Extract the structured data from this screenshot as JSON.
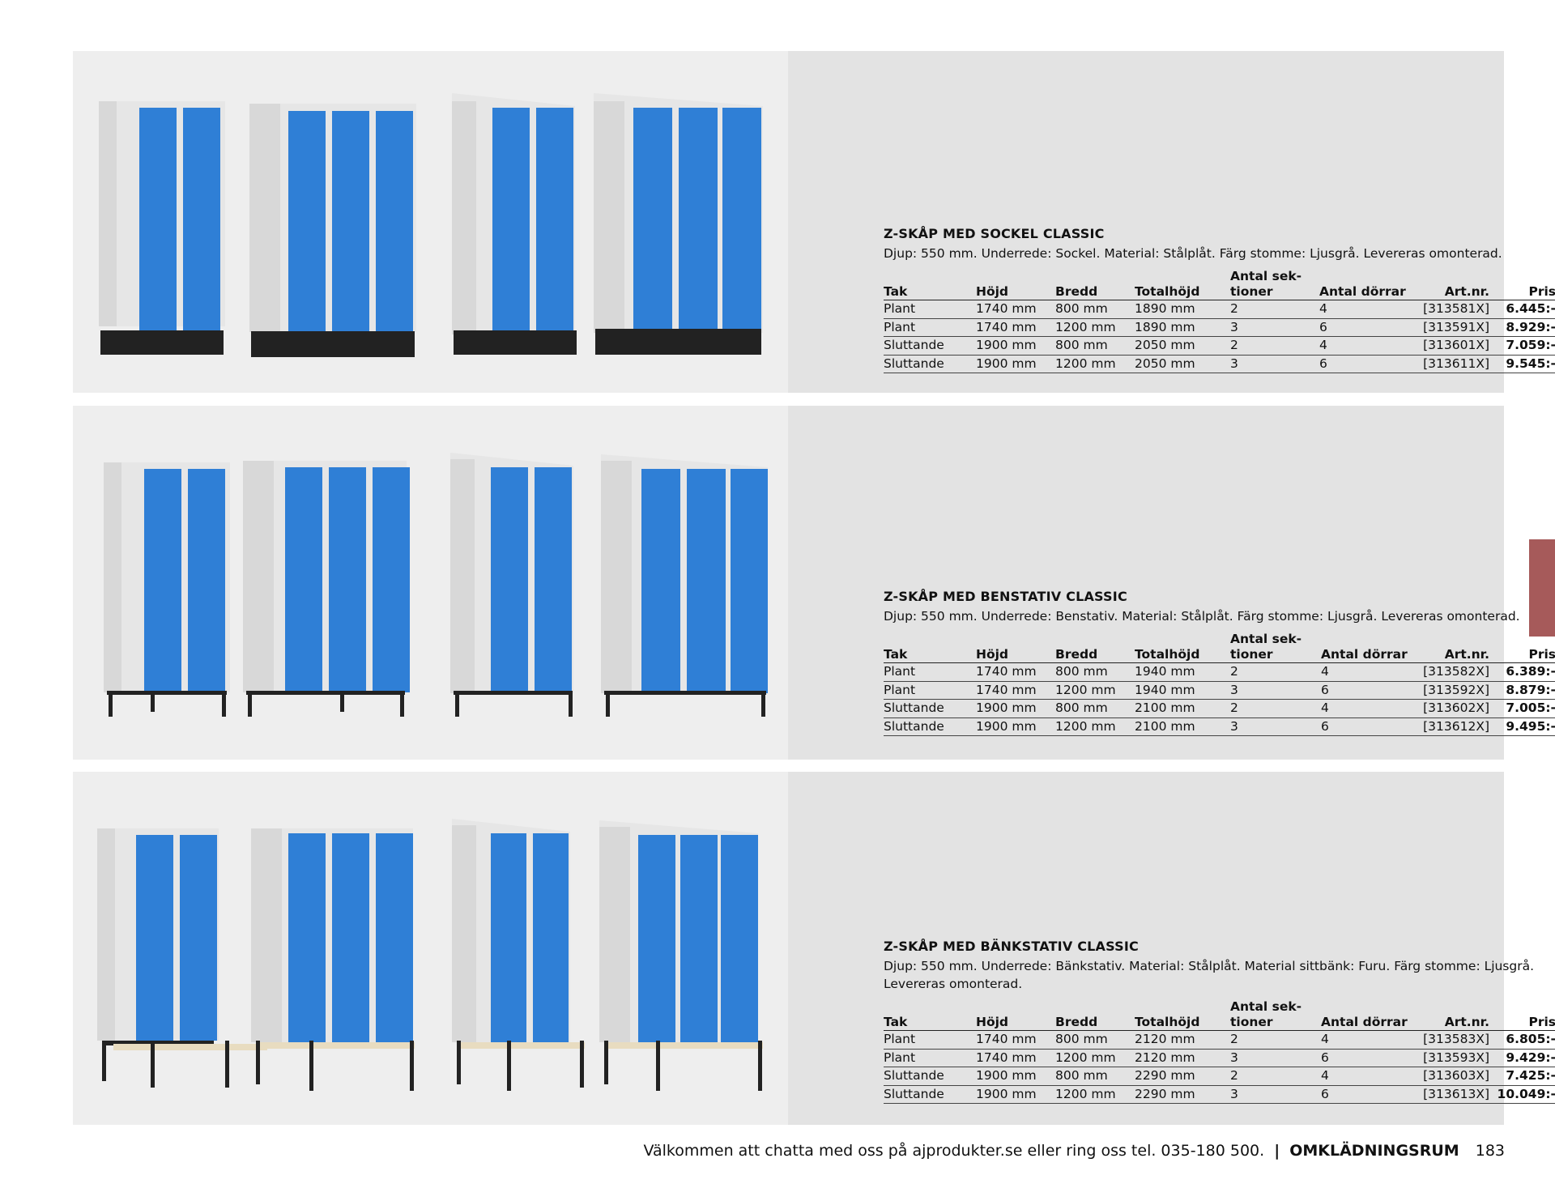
{
  "columns": [
    "Tak",
    "Höjd",
    "Bredd",
    "Totalhöjd",
    "Antal sek-\ntioner",
    "Antal dörrar",
    "Art.nr.",
    "Pris"
  ],
  "products": [
    {
      "title": "Z-SKÅP MED SOCKEL CLASSIC",
      "description": "Djup: 550 mm. Underrede: Sockel. Material: Stålplåt. Färg stomme: Ljusgrå. Levereras omonterad.",
      "rows": [
        [
          "Plant",
          "1740 mm",
          "800 mm",
          "1890 mm",
          "2",
          "4",
          "[313581X]",
          "6.445:-"
        ],
        [
          "Plant",
          "1740 mm",
          "1200 mm",
          "1890 mm",
          "3",
          "6",
          "[313591X]",
          "8.929:-"
        ],
        [
          "Sluttande",
          "1900 mm",
          "800 mm",
          "2050 mm",
          "2",
          "4",
          "[313601X]",
          "7.059:-"
        ],
        [
          "Sluttande",
          "1900 mm",
          "1200 mm",
          "2050 mm",
          "3",
          "6",
          "[313611X]",
          "9.545:-"
        ]
      ]
    },
    {
      "title": "Z-SKÅP MED BENSTATIV CLASSIC",
      "description": "Djup: 550 mm. Underrede: Benstativ. Material: Stålplåt. Färg stomme: Ljusgrå. Levereras omonterad.",
      "rows": [
        [
          "Plant",
          "1740 mm",
          "800 mm",
          "1940 mm",
          "2",
          "4",
          "[313582X]",
          "6.389:-"
        ],
        [
          "Plant",
          "1740 mm",
          "1200 mm",
          "1940 mm",
          "3",
          "6",
          "[313592X]",
          "8.879:-"
        ],
        [
          "Sluttande",
          "1900 mm",
          "800 mm",
          "2100 mm",
          "2",
          "4",
          "[313602X]",
          "7.005:-"
        ],
        [
          "Sluttande",
          "1900 mm",
          "1200 mm",
          "2100 mm",
          "3",
          "6",
          "[313612X]",
          "9.495:-"
        ]
      ]
    },
    {
      "title": "Z-SKÅP MED BÄNKSTATIV CLASSIC",
      "description": "Djup: 550 mm. Underrede: Bänkstativ. Material: Stålplåt. Material sittbänk: Furu. Färg stomme: Ljusgrå. Levereras omonterad.",
      "rows": [
        [
          "Plant",
          "1740 mm",
          "800 mm",
          "2120 mm",
          "2",
          "4",
          "[313583X]",
          "6.805:-"
        ],
        [
          "Plant",
          "1740 mm",
          "1200 mm",
          "2120 mm",
          "3",
          "6",
          "[313593X]",
          "9.429:-"
        ],
        [
          "Sluttande",
          "1900 mm",
          "800 mm",
          "2290 mm",
          "2",
          "4",
          "[313603X]",
          "7.425:-"
        ],
        [
          "Sluttande",
          "1900 mm",
          "1200 mm",
          "2290 mm",
          "3",
          "6",
          "[313613X]",
          "10.049:-"
        ]
      ]
    }
  ],
  "footer": {
    "contact": "Välkommen att chatta med oss på ajprodukter.se eller ring oss tel. 035-180 500.",
    "separator": "|",
    "section": "OMKLÄDNINGSRUM",
    "page_number": "183"
  },
  "colors": {
    "door_blue": "#2f7fd6",
    "frame_grey": "#e4e4e4",
    "tab_marker": "#a65a5a"
  }
}
